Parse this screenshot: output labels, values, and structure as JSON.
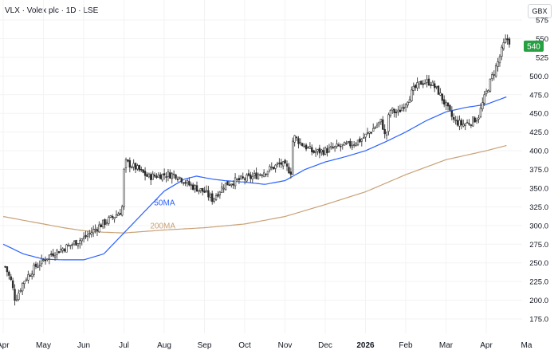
{
  "header": {
    "title": "VLX · Volex plc · 1D · LSE",
    "currency": "GBX"
  },
  "colors": {
    "up": "#26a69a",
    "down": "#4a4a4a",
    "candle_body": "#2b2b2b",
    "ma50": "#2962ff",
    "ma200": "#c8a177",
    "price_badge": "#26a041",
    "grid": "#f3f3f3",
    "axis_text": "#131722"
  },
  "chart_data": {
    "type": "candlestick",
    "symbol": "VLX",
    "interval": "1D",
    "last_price": 540,
    "last_price_label": "540",
    "y_ticks": [
      175,
      200,
      225,
      250,
      275,
      300,
      325,
      350,
      375,
      400,
      425,
      450,
      475,
      500,
      525,
      550,
      575
    ],
    "y_tick_labels": [
      "175.0",
      "200.0",
      "225.0",
      "250.0",
      "275.0",
      "300.0",
      "325.0",
      "350.0",
      "375.0",
      "400.0",
      "425.0",
      "450.0",
      "475.0",
      "500.0",
      "525",
      "550",
      "575"
    ],
    "ylim": [
      168,
      586
    ],
    "x_labels": [
      {
        "label": "Apr",
        "month": 0
      },
      {
        "label": "May",
        "month": 1
      },
      {
        "label": "Jun",
        "month": 2
      },
      {
        "label": "Jul",
        "month": 3
      },
      {
        "label": "Aug",
        "month": 4
      },
      {
        "label": "Sep",
        "month": 5
      },
      {
        "label": "Oct",
        "month": 6
      },
      {
        "label": "Nov",
        "month": 7
      },
      {
        "label": "Dec",
        "month": 8
      },
      {
        "label": "2026",
        "month": 9
      },
      {
        "label": "Feb",
        "month": 10
      },
      {
        "label": "Mar",
        "month": 11
      },
      {
        "label": "Apr",
        "month": 12
      },
      {
        "label": "Ma",
        "month": 13
      }
    ],
    "price_anchors": [
      [
        0.05,
        245
      ],
      [
        0.2,
        225
      ],
      [
        0.3,
        200
      ],
      [
        0.5,
        225
      ],
      [
        0.8,
        245
      ],
      [
        1.2,
        262
      ],
      [
        1.6,
        272
      ],
      [
        2.0,
        283
      ],
      [
        2.4,
        300
      ],
      [
        2.75,
        312
      ],
      [
        2.95,
        320
      ],
      [
        3.0,
        372
      ],
      [
        3.03,
        385
      ],
      [
        3.3,
        377
      ],
      [
        3.6,
        365
      ],
      [
        4.0,
        368
      ],
      [
        4.3,
        368
      ],
      [
        4.6,
        355
      ],
      [
        5.0,
        345
      ],
      [
        5.2,
        335
      ],
      [
        5.5,
        355
      ],
      [
        5.8,
        360
      ],
      [
        6.2,
        365
      ],
      [
        6.6,
        375
      ],
      [
        6.9,
        383
      ],
      [
        7.15,
        372
      ],
      [
        7.2,
        420
      ],
      [
        7.4,
        410
      ],
      [
        7.7,
        398
      ],
      [
        8.0,
        400
      ],
      [
        8.3,
        405
      ],
      [
        8.6,
        408
      ],
      [
        8.9,
        415
      ],
      [
        9.1,
        425
      ],
      [
        9.4,
        440
      ],
      [
        9.5,
        415
      ],
      [
        9.6,
        455
      ],
      [
        9.8,
        450
      ],
      [
        10.0,
        465
      ],
      [
        10.2,
        482
      ],
      [
        10.4,
        492
      ],
      [
        10.6,
        492
      ],
      [
        10.8,
        480
      ],
      [
        11.0,
        460
      ],
      [
        11.2,
        440
      ],
      [
        11.4,
        435
      ],
      [
        11.6,
        438
      ],
      [
        11.8,
        445
      ],
      [
        11.95,
        470
      ],
      [
        12.15,
        500
      ],
      [
        12.3,
        520
      ],
      [
        12.45,
        545
      ],
      [
        12.55,
        550
      ],
      [
        12.62,
        540
      ]
    ],
    "ma50_anchors": [
      [
        0.0,
        275
      ],
      [
        0.5,
        262
      ],
      [
        1.0,
        255
      ],
      [
        1.5,
        254
      ],
      [
        2.0,
        254
      ],
      [
        2.5,
        262
      ],
      [
        3.0,
        290
      ],
      [
        3.5,
        318
      ],
      [
        4.0,
        346
      ],
      [
        4.5,
        362
      ],
      [
        4.8,
        366
      ],
      [
        5.2,
        362
      ],
      [
        5.5,
        360
      ],
      [
        6.0,
        358
      ],
      [
        6.5,
        355
      ],
      [
        7.0,
        360
      ],
      [
        7.5,
        375
      ],
      [
        8.0,
        385
      ],
      [
        8.5,
        392
      ],
      [
        9.0,
        400
      ],
      [
        9.5,
        412
      ],
      [
        10.0,
        425
      ],
      [
        10.5,
        440
      ],
      [
        11.0,
        452
      ],
      [
        11.5,
        458
      ],
      [
        12.0,
        462
      ],
      [
        12.2,
        466
      ],
      [
        12.5,
        472
      ]
    ],
    "ma200_anchors": [
      [
        0.0,
        312
      ],
      [
        0.5,
        307
      ],
      [
        1.0,
        302
      ],
      [
        1.5,
        297
      ],
      [
        2.0,
        293
      ],
      [
        2.5,
        291
      ],
      [
        3.0,
        290
      ],
      [
        3.5,
        292
      ],
      [
        4.0,
        294
      ],
      [
        5.0,
        297
      ],
      [
        6.0,
        302
      ],
      [
        7.0,
        312
      ],
      [
        8.0,
        328
      ],
      [
        9.0,
        345
      ],
      [
        10.0,
        368
      ],
      [
        11.0,
        388
      ],
      [
        12.0,
        400
      ],
      [
        12.5,
        407
      ]
    ],
    "annotations": [
      {
        "text": "50MA",
        "month": 3.75,
        "price": 327,
        "color": "#2962ff"
      },
      {
        "text": "200MA",
        "month": 3.65,
        "price": 296,
        "color": "#c8a177"
      }
    ],
    "grid": true
  }
}
